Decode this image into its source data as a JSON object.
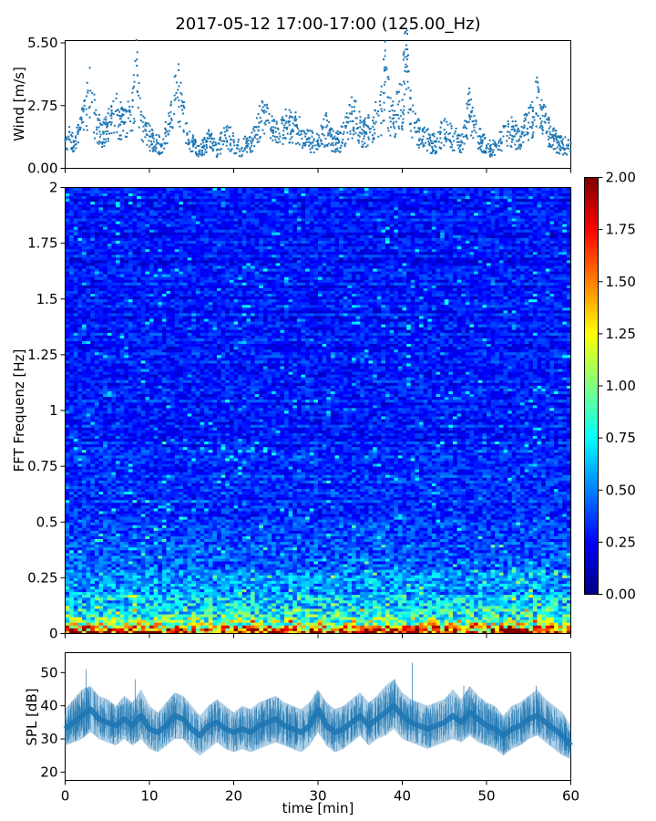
{
  "figure": {
    "title": "2017-05-12 17:00-17:00 (125.00_Hz)"
  },
  "chart_data": [
    {
      "type": "scatter",
      "panel": "wind",
      "ylabel": "Wind [m/s]",
      "xlim": [
        0,
        60
      ],
      "ylim": [
        0,
        5.6
      ],
      "yticks": [
        "0.00",
        "2.75",
        "5.50"
      ],
      "ytick_values": [
        0,
        2.75,
        5.5
      ],
      "color": "#1f77b4",
      "x": [
        0,
        0.5,
        1,
        1.5,
        2,
        2.5,
        3,
        3.5,
        4,
        4.5,
        5,
        5.5,
        6,
        6.5,
        7,
        7.5,
        8,
        8.5,
        9,
        9.5,
        10,
        10.5,
        11,
        11.5,
        12,
        12.5,
        13,
        13.5,
        14,
        14.5,
        15,
        15.5,
        16,
        16.5,
        17,
        17.5,
        18,
        18.5,
        19,
        19.5,
        20,
        20.5,
        21,
        21.5,
        22,
        22.5,
        23,
        23.5,
        24,
        24.5,
        25,
        25.5,
        26,
        26.5,
        27,
        27.5,
        28,
        28.5,
        29,
        29.5,
        30,
        30.5,
        31,
        31.5,
        32,
        32.5,
        33,
        33.5,
        34,
        34.5,
        35,
        35.5,
        36,
        36.5,
        37,
        37.5,
        38,
        38.5,
        39,
        39.5,
        40,
        40.5,
        41,
        41.5,
        42,
        42.5,
        43,
        43.5,
        44,
        44.5,
        45,
        45.5,
        46,
        46.5,
        47,
        47.5,
        48,
        48.5,
        49,
        49.5,
        50,
        50.5,
        51,
        51.5,
        52,
        52.5,
        53,
        53.5,
        54,
        54.5,
        55,
        55.5,
        56,
        56.5,
        57,
        57.5,
        58,
        58.5,
        59,
        59.5,
        60
      ],
      "y": [
        1.3,
        1.6,
        1.2,
        1.5,
        2.0,
        2.6,
        3.4,
        2.4,
        1.8,
        1.6,
        1.9,
        2.2,
        2.5,
        2.3,
        2.0,
        2.2,
        2.7,
        4.5,
        2.1,
        1.7,
        1.4,
        1.3,
        1.1,
        1.0,
        1.6,
        2.0,
        3.2,
        3.6,
        2.4,
        1.5,
        1.2,
        0.9,
        0.8,
        1.0,
        1.3,
        1.1,
        0.8,
        1.2,
        1.6,
        1.4,
        1.2,
        1.0,
        0.9,
        1.1,
        1.2,
        1.4,
        2.0,
        2.5,
        2.1,
        1.8,
        1.6,
        1.4,
        2.1,
        2.0,
        1.7,
        1.9,
        1.6,
        1.4,
        1.3,
        1.2,
        1.1,
        1.5,
        1.8,
        1.4,
        1.3,
        1.2,
        1.5,
        2.0,
        2.4,
        2.2,
        1.8,
        1.6,
        1.8,
        2.1,
        2.4,
        2.6,
        4.3,
        2.5,
        2.2,
        2.8,
        3.0,
        5.4,
        2.6,
        2.0,
        1.6,
        1.4,
        1.3,
        1.1,
        1.2,
        1.5,
        1.7,
        1.5,
        1.4,
        1.3,
        1.2,
        1.8,
        2.8,
        1.9,
        1.4,
        1.2,
        1.0,
        0.9,
        1.0,
        1.2,
        1.4,
        1.6,
        1.7,
        1.5,
        1.4,
        1.8,
        2.0,
        2.5,
        3.1,
        2.7,
        2.0,
        1.6,
        1.3,
        1.2,
        1.1,
        1.0,
        1.1
      ]
    },
    {
      "type": "heatmap",
      "panel": "spectrogram",
      "ylabel": "FFT Frequenz [Hz]",
      "xlim": [
        0,
        60
      ],
      "ylim": [
        0,
        2
      ],
      "yticks": [
        "0",
        "0.25",
        "0.5",
        "0.75",
        "1",
        "1.25",
        "1.5",
        "1.75",
        "2"
      ],
      "ytick_values": [
        0,
        0.25,
        0.5,
        0.75,
        1,
        1.25,
        1.5,
        1.75,
        2
      ],
      "colormap": "jet",
      "clim": [
        0,
        2
      ],
      "colorbar_ticks": [
        "0.00",
        "0.25",
        "0.50",
        "0.75",
        "1.00",
        "1.25",
        "1.50",
        "1.75",
        "2.00"
      ],
      "colorbar_tick_values": [
        0,
        0.25,
        0.5,
        0.75,
        1,
        1.25,
        1.5,
        1.75,
        2
      ],
      "typical_value_by_frequency": {
        "freq": [
          0,
          0.02,
          0.05,
          0.1,
          0.2,
          0.3,
          0.5,
          1,
          2
        ],
        "value": [
          1.9,
          1.5,
          1.0,
          0.75,
          0.55,
          0.45,
          0.35,
          0.3,
          0.28
        ]
      }
    },
    {
      "type": "area",
      "panel": "spl",
      "xlabel": "time [min]",
      "ylabel": "SPL [dB]",
      "xlim": [
        0,
        60
      ],
      "ylim": [
        17.5,
        56
      ],
      "xticks": [
        "0",
        "10",
        "20",
        "30",
        "40",
        "50",
        "60"
      ],
      "xtick_values": [
        0,
        10,
        20,
        30,
        40,
        50,
        60
      ],
      "yticks": [
        "20",
        "30",
        "40",
        "50"
      ],
      "ytick_values": [
        20,
        30,
        40,
        50
      ],
      "color": "#1f77b4",
      "x": [
        0,
        1,
        2,
        3,
        4,
        5,
        6,
        7,
        8,
        9,
        10,
        11,
        12,
        13,
        14,
        15,
        16,
        17,
        18,
        19,
        20,
        21,
        22,
        23,
        24,
        25,
        26,
        27,
        28,
        29,
        30,
        31,
        32,
        33,
        34,
        35,
        36,
        37,
        38,
        39,
        40,
        41,
        42,
        43,
        44,
        45,
        46,
        47,
        48,
        49,
        50,
        51,
        52,
        53,
        54,
        55,
        56,
        57,
        58,
        59,
        60
      ],
      "mean": [
        33,
        35,
        37,
        39,
        36,
        35,
        34,
        36,
        34,
        37,
        33,
        32,
        34,
        37,
        36,
        33,
        31,
        34,
        35,
        33,
        32,
        33,
        32,
        34,
        35,
        36,
        34,
        33,
        32,
        34,
        39,
        34,
        32,
        33,
        35,
        37,
        34,
        36,
        38,
        40,
        37,
        35,
        34,
        33,
        34,
        35,
        37,
        35,
        38,
        36,
        34,
        33,
        31,
        33,
        34,
        36,
        37,
        35,
        33,
        31,
        28
      ],
      "low": [
        28,
        29,
        30,
        32,
        30,
        29,
        28,
        30,
        28,
        30,
        27,
        26,
        28,
        30,
        30,
        27,
        25,
        27,
        29,
        27,
        26,
        27,
        26,
        27,
        28,
        29,
        28,
        27,
        26,
        28,
        32,
        28,
        26,
        27,
        29,
        31,
        28,
        30,
        31,
        33,
        30,
        29,
        28,
        27,
        28,
        29,
        30,
        29,
        31,
        29,
        28,
        27,
        25,
        27,
        28,
        30,
        31,
        29,
        27,
        25,
        24
      ],
      "high": [
        39,
        42,
        45,
        46,
        43,
        42,
        40,
        43,
        41,
        45,
        40,
        38,
        41,
        44,
        43,
        40,
        37,
        40,
        42,
        40,
        38,
        40,
        39,
        41,
        42,
        43,
        41,
        40,
        39,
        41,
        45,
        41,
        39,
        40,
        42,
        44,
        41,
        43,
        46,
        48,
        44,
        42,
        41,
        40,
        41,
        42,
        45,
        42,
        46,
        43,
        41,
        40,
        37,
        40,
        41,
        43,
        45,
        42,
        40,
        38,
        34
      ],
      "peaks": {
        "x": [
          2.5,
          8.3,
          39.1,
          41.2,
          47.3,
          55.9
        ],
        "y": [
          51,
          48,
          48,
          53,
          46,
          46
        ]
      }
    }
  ]
}
